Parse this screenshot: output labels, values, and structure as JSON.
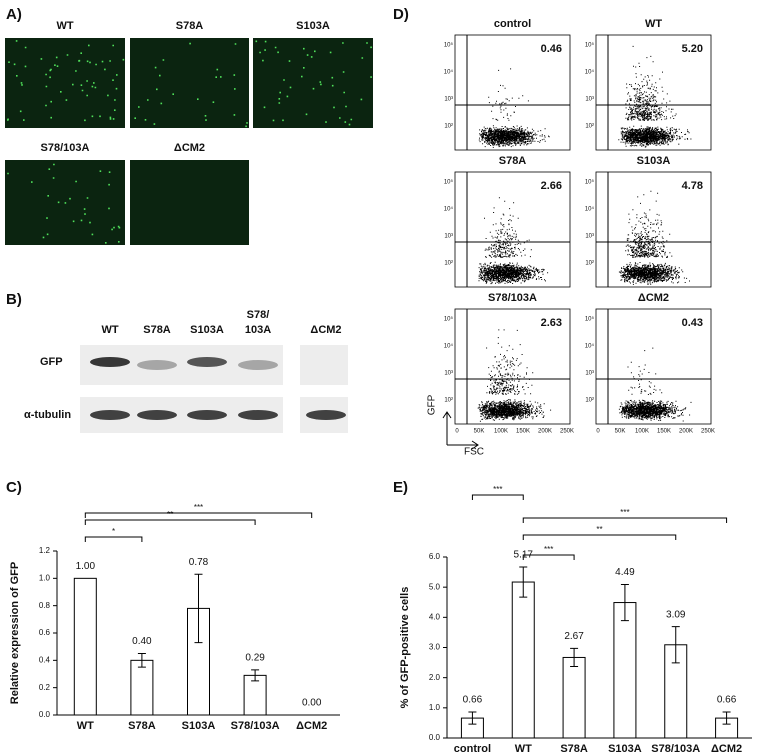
{
  "panels": {
    "a": "A)",
    "b": "B)",
    "c": "C)",
    "d": "D)",
    "e": "E)"
  },
  "microscopy": {
    "labels": [
      "WT",
      "S78A",
      "S103A",
      "S78/103A",
      "ΔCM2"
    ]
  },
  "western_blot": {
    "lanes": [
      "WT",
      "S78A",
      "S103A",
      "S78/",
      "103A",
      "ΔCM2"
    ],
    "rows": [
      "GFP",
      "α-tubulin"
    ]
  },
  "flow": {
    "plots": [
      {
        "label": "control",
        "percent": "0.46"
      },
      {
        "label": "WT",
        "percent": "5.20"
      },
      {
        "label": "S78A",
        "percent": "2.66"
      },
      {
        "label": "S103A",
        "percent": "4.78"
      },
      {
        "label": "S78/103A",
        "percent": "2.63"
      },
      {
        "label": "ΔCM2",
        "percent": "0.43"
      }
    ],
    "yticks": [
      "10⁵",
      "10⁴",
      "10³",
      "10²"
    ],
    "xticks": [
      "0",
      "50K",
      "100K",
      "150K",
      "200K",
      "250K"
    ],
    "ylabel": "GFP",
    "xlabel": "FSC"
  },
  "chart_data": [
    {
      "type": "bar",
      "ylabel": "Relative expression of GFP",
      "categories": [
        "WT",
        "S78A",
        "S103A",
        "S78/103A",
        "ΔCM2"
      ],
      "values": [
        1.0,
        0.4,
        0.78,
        0.29,
        0.0
      ],
      "value_labels": [
        "1.00",
        "0.40",
        "0.78",
        "0.29",
        "0.00"
      ],
      "errors": [
        0,
        0.05,
        0.25,
        0.04,
        0
      ],
      "color": "#ffffff",
      "ylim": [
        0,
        1.2
      ],
      "yticks": [
        {
          "value": 0,
          "label": "0.0"
        },
        0.2,
        0.4,
        0.6,
        0.8,
        {
          "value": 1,
          "label": "1.0"
        },
        1.2
      ],
      "significance": [
        {
          "between": [
            "WT",
            "ΔCM2"
          ],
          "label": "***"
        },
        {
          "between": [
            "WT",
            "S78/103A"
          ],
          "label": "**"
        },
        {
          "between": [
            "WT",
            "S78A"
          ],
          "label": "*"
        }
      ]
    },
    {
      "type": "bar",
      "ylabel": "% of GFP-positive cells",
      "categories": [
        "control",
        "WT",
        "S78A",
        "S103A",
        "S78/103A",
        "ΔCM2"
      ],
      "values": [
        0.66,
        5.17,
        2.67,
        4.49,
        3.09,
        0.66
      ],
      "value_labels": [
        "0.66",
        "5.17",
        "2.67",
        "4.49",
        "3.09",
        "0.66"
      ],
      "errors": [
        0.2,
        0.5,
        0.3,
        0.6,
        0.6,
        0.2
      ],
      "color": "#ffffff",
      "ylim": [
        0,
        6
      ],
      "yticks": [
        {
          "value": 0,
          "label": "0.0"
        },
        {
          "value": 1,
          "label": "1.0"
        },
        {
          "value": 2,
          "label": "2.0"
        },
        {
          "value": 3,
          "label": "3.0"
        },
        {
          "value": 4,
          "label": "4.0"
        },
        {
          "value": 5,
          "label": "5.0"
        },
        {
          "value": 6,
          "label": "6.0"
        }
      ],
      "significance": [
        {
          "between": [
            "control",
            "WT"
          ],
          "label": "***"
        },
        {
          "between": [
            "WT",
            "ΔCM2"
          ],
          "label": "***"
        },
        {
          "between": [
            "WT",
            "S78/103A"
          ],
          "label": "**"
        },
        {
          "between": [
            "WT",
            "S78A"
          ],
          "label": "***"
        }
      ]
    }
  ]
}
